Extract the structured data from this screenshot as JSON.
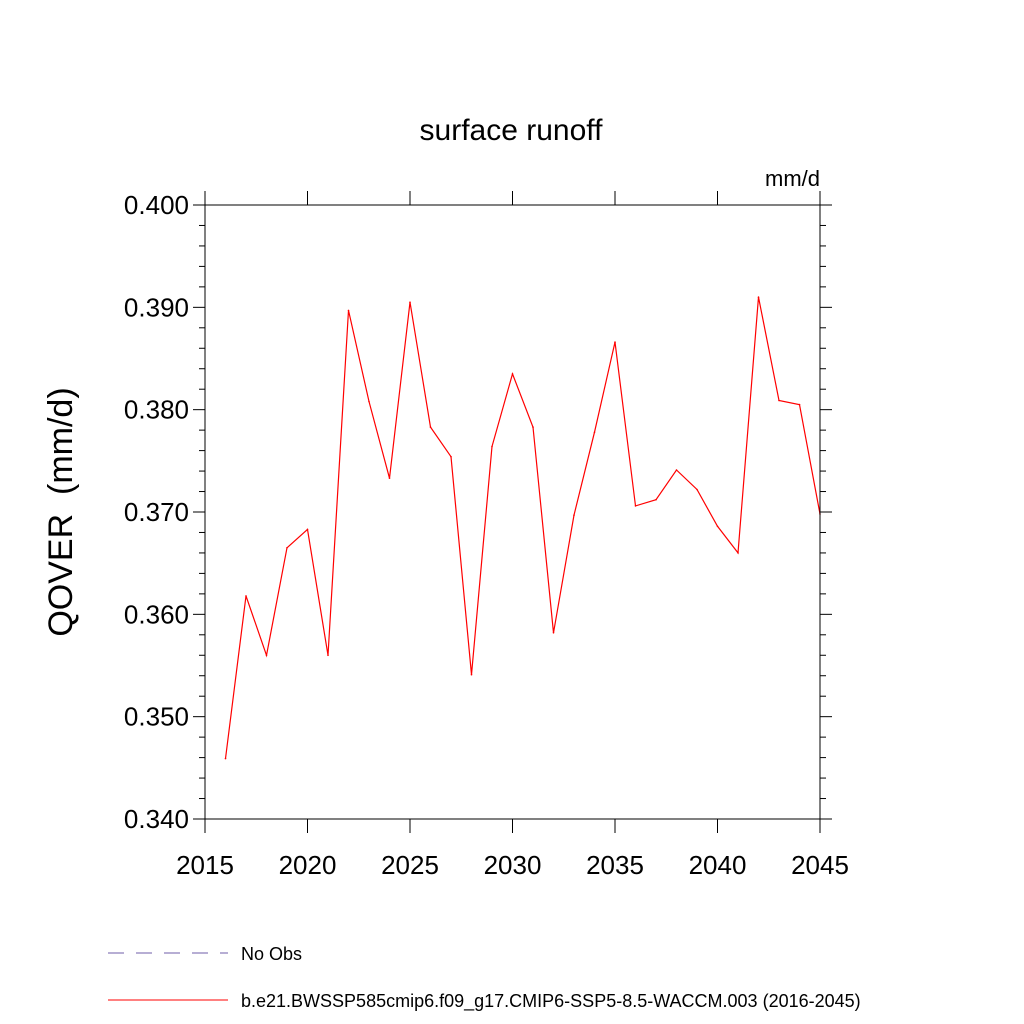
{
  "chart_data": {
    "type": "line",
    "title": "surface runoff",
    "units": "mm/d",
    "ylabel": "QOVER  (mm/d)",
    "xlabel": "",
    "xlim": [
      2015,
      2045
    ],
    "ylim": [
      0.34,
      0.4
    ],
    "xticks": [
      2015,
      2020,
      2025,
      2030,
      2035,
      2040,
      2045
    ],
    "xtick_labels": [
      "2015",
      "2020",
      "2025",
      "2030",
      "2035",
      "2040",
      "2045"
    ],
    "yticks": [
      0.34,
      0.35,
      0.36,
      0.37,
      0.38,
      0.39,
      0.4
    ],
    "ytick_labels": [
      "0.340",
      "0.350",
      "0.360",
      "0.370",
      "0.380",
      "0.390",
      "0.400"
    ],
    "grid": false,
    "legend_placement": "bottom",
    "series": [
      {
        "name": "b.e21.BWSSP585cmip6.f09_g17.CMIP6-SSP5-8.5-WACCM.003 (2016-2045)",
        "color": "#ff0000",
        "style": "solid",
        "x": [
          2016,
          2017,
          2018,
          2019,
          2020,
          2021,
          2022,
          2023,
          2024,
          2025,
          2026,
          2027,
          2028,
          2029,
          2030,
          2031,
          2032,
          2033,
          2034,
          2035,
          2036,
          2037,
          2038,
          2039,
          2040,
          2041,
          2042,
          2043,
          2044,
          2045
        ],
        "values": [
          0.3459,
          0.3618,
          0.356,
          0.3665,
          0.3683,
          0.356,
          0.3897,
          0.3808,
          0.3733,
          0.3905,
          0.3783,
          0.3754,
          0.3541,
          0.3764,
          0.3835,
          0.3783,
          0.3582,
          0.3697,
          0.3778,
          0.3866,
          0.3706,
          0.3712,
          0.3741,
          0.3722,
          0.3686,
          0.366,
          0.391,
          0.3809,
          0.3805,
          0.3698
        ]
      },
      {
        "name": "No Obs",
        "color": "#6f5ea8",
        "style": "dashed",
        "x": [],
        "values": []
      }
    ]
  }
}
